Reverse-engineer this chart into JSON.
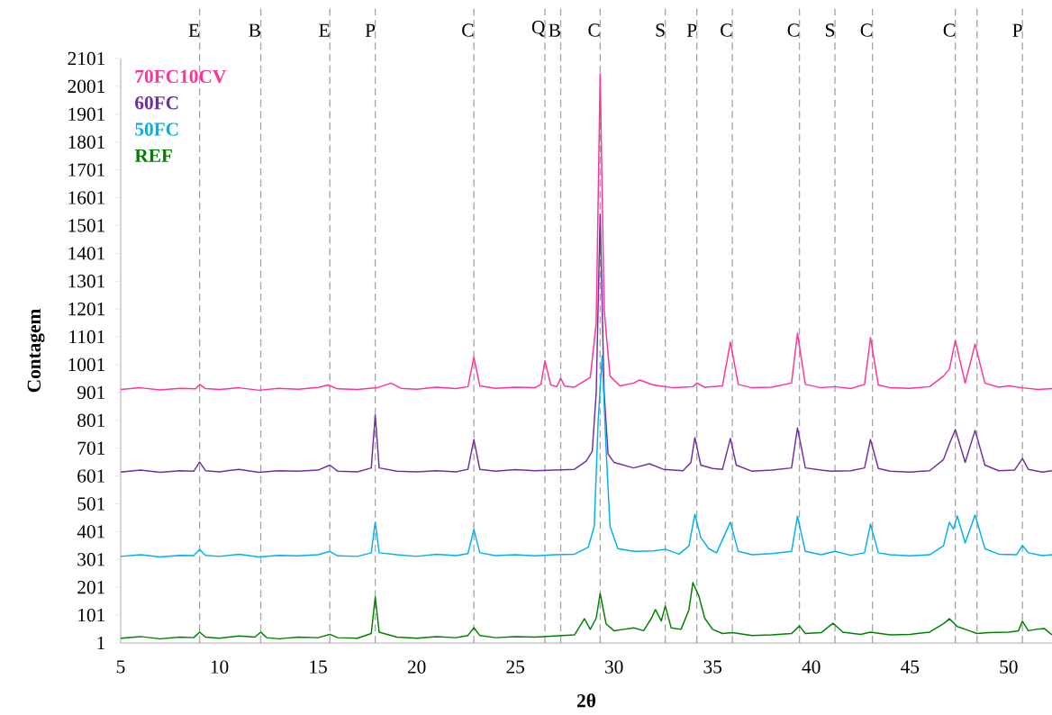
{
  "chart_data": {
    "type": "line",
    "xlabel": "2θ",
    "ylabel": "Contagem",
    "legend": "top left",
    "line_style": "solid",
    "xlim": [
      5,
      52.2
    ],
    "ylim": [
      1,
      2101
    ],
    "xticks": [
      5,
      10,
      15,
      20,
      25,
      30,
      35,
      40,
      45,
      50
    ],
    "yticks": [
      1,
      101,
      201,
      301,
      401,
      501,
      601,
      701,
      801,
      901,
      1001,
      1101,
      1201,
      1301,
      1401,
      1501,
      1601,
      1701,
      1801,
      1901,
      2001,
      2101
    ],
    "series": [
      {
        "name": "70FC10CV",
        "color": "#ff3399",
        "x": [
          5,
          6,
          7,
          8,
          8.8,
          9.0,
          9.3,
          10,
          11,
          12,
          13,
          14,
          15,
          15.5,
          16,
          17,
          18,
          18.7,
          19.2,
          20,
          21,
          22,
          22.6,
          22.9,
          23.2,
          24,
          25,
          26,
          26.3,
          26.5,
          26.8,
          27.1,
          27.3,
          27.5,
          28,
          28.8,
          29.1,
          29.3,
          29.5,
          29.8,
          30.3,
          31,
          31.3,
          32,
          33,
          34,
          34.2,
          34.6,
          35.5,
          35.9,
          36.3,
          37,
          38,
          39,
          39.3,
          39.7,
          40.5,
          41.2,
          42,
          42.7,
          43.0,
          43.4,
          44,
          45,
          46,
          46.7,
          47.0,
          47.3,
          47.8,
          48.3,
          48.8,
          49.5,
          50,
          50.7,
          51.5,
          52.2
        ],
        "values": [
          912,
          918,
          910,
          916,
          914,
          930,
          915,
          912,
          918,
          909,
          916,
          913,
          919,
          928,
          914,
          912,
          918,
          935,
          916,
          913,
          920,
          915,
          922,
          1028,
          925,
          916,
          920,
          918,
          930,
          1015,
          928,
          922,
          952,
          924,
          920,
          955,
          1150,
          2046,
          1200,
          960,
          925,
          935,
          946,
          928,
          918,
          922,
          935,
          920,
          925,
          1082,
          930,
          918,
          920,
          935,
          1114,
          930,
          918,
          922,
          915,
          930,
          1098,
          928,
          918,
          916,
          922,
          960,
          985,
          1088,
          935,
          1075,
          935,
          920,
          925,
          918,
          912,
          915
        ]
      },
      {
        "name": "60FC",
        "color": "#7030a0",
        "x": [
          5,
          6,
          7,
          8,
          8.7,
          9.0,
          9.3,
          10,
          11,
          12,
          13,
          14,
          15,
          15.6,
          16,
          17,
          17.7,
          17.9,
          18.1,
          19,
          20,
          21,
          22,
          22.6,
          22.9,
          23.2,
          24,
          25,
          26,
          27,
          28,
          28.6,
          28.9,
          29.1,
          29.3,
          29.5,
          29.7,
          30,
          31,
          31.8,
          32.5,
          33.5,
          33.9,
          34.1,
          34.4,
          35,
          35.5,
          35.9,
          36.2,
          37,
          38,
          39,
          39.3,
          39.7,
          40.5,
          41,
          42,
          42.7,
          43.0,
          43.4,
          44,
          45,
          46,
          46.7,
          47.0,
          47.3,
          47.8,
          48.3,
          48.8,
          49.5,
          50.3,
          50.7,
          51,
          51.7,
          52.2
        ],
        "values": [
          615,
          622,
          614,
          620,
          618,
          651,
          620,
          616,
          625,
          614,
          620,
          618,
          622,
          640,
          618,
          616,
          630,
          820,
          630,
          618,
          616,
          620,
          616,
          625,
          732,
          625,
          618,
          624,
          620,
          622,
          625,
          655,
          690,
          900,
          1541,
          900,
          680,
          650,
          630,
          645,
          625,
          620,
          650,
          739,
          640,
          628,
          625,
          736,
          640,
          618,
          622,
          630,
          774,
          630,
          622,
          618,
          620,
          630,
          732,
          628,
          618,
          615,
          620,
          660,
          716,
          768,
          650,
          765,
          640,
          620,
          622,
          664,
          625,
          615,
          620
        ]
      },
      {
        "name": "50FC",
        "color": "#00b0f0",
        "x": [
          5,
          6,
          7,
          8,
          8.7,
          9.0,
          9.3,
          10,
          11,
          12,
          13,
          14,
          15,
          15.6,
          16,
          17,
          17.7,
          17.9,
          18.1,
          19,
          20,
          21,
          22,
          22.6,
          22.9,
          23.2,
          24,
          25,
          26,
          27,
          28,
          28.7,
          29.0,
          29.2,
          29.4,
          29.6,
          29.8,
          30.2,
          31,
          32,
          32.6,
          33.3,
          33.8,
          34.1,
          34.4,
          34.8,
          35.2,
          35.9,
          36.3,
          37,
          38,
          39,
          39.3,
          39.7,
          40.5,
          41.2,
          42,
          42.7,
          43.0,
          43.4,
          44,
          45,
          46,
          46.7,
          47.0,
          47.2,
          47.4,
          47.8,
          48.3,
          48.8,
          49.5,
          50.4,
          50.7,
          51,
          51.7,
          52.2
        ],
        "values": [
          312,
          318,
          310,
          316,
          315,
          337,
          316,
          312,
          320,
          310,
          316,
          314,
          318,
          330,
          314,
          312,
          325,
          435,
          325,
          318,
          312,
          320,
          315,
          322,
          409,
          325,
          315,
          318,
          314,
          318,
          320,
          345,
          420,
          800,
          1033,
          700,
          420,
          340,
          330,
          332,
          338,
          320,
          350,
          464,
          380,
          340,
          325,
          435,
          330,
          318,
          322,
          330,
          457,
          330,
          318,
          330,
          316,
          325,
          428,
          325,
          318,
          314,
          318,
          350,
          435,
          410,
          457,
          360,
          461,
          340,
          320,
          318,
          351,
          325,
          315,
          318
        ]
      },
      {
        "name": "REF",
        "color": "#008000",
        "x": [
          5,
          6,
          7,
          8,
          8.7,
          9.0,
          9.3,
          10,
          11,
          11.8,
          12.1,
          12.4,
          13,
          14,
          15,
          15.6,
          16,
          17,
          17.7,
          17.9,
          18.1,
          19,
          20,
          21,
          22,
          22.6,
          22.9,
          23.2,
          24,
          25,
          26,
          27,
          28,
          28.5,
          28.8,
          29.1,
          29.3,
          29.6,
          30,
          30.5,
          31,
          31.5,
          31.9,
          32.1,
          32.4,
          32.6,
          32.9,
          33.4,
          33.8,
          34.0,
          34.3,
          34.6,
          35,
          35.5,
          36,
          37,
          38,
          39,
          39.4,
          39.7,
          40.5,
          41.1,
          41.6,
          42.5,
          43,
          44,
          45,
          46,
          46.7,
          47.0,
          47.4,
          48,
          48.4,
          49,
          50,
          50.5,
          50.7,
          51,
          51.4,
          51.8,
          52.2
        ],
        "values": [
          18,
          24,
          16,
          22,
          20,
          40,
          22,
          18,
          26,
          22,
          40,
          20,
          16,
          22,
          20,
          32,
          20,
          18,
          35,
          166,
          40,
          22,
          18,
          24,
          20,
          28,
          56,
          28,
          20,
          24,
          22,
          26,
          30,
          88,
          50,
          90,
          179,
          70,
          45,
          50,
          55,
          45,
          90,
          121,
          80,
          134,
          55,
          50,
          120,
          218,
          170,
          90,
          50,
          35,
          38,
          28,
          30,
          35,
          62,
          35,
          38,
          72,
          40,
          32,
          40,
          30,
          32,
          40,
          70,
          88,
          60,
          45,
          35,
          38,
          40,
          45,
          79,
          45,
          50,
          53,
          30
        ]
      }
    ],
    "ref_lines": [
      {
        "axis": "x",
        "value": 9.0,
        "label": "E",
        "color": "#a6a6a6",
        "line_style": "dashed"
      },
      {
        "axis": "x",
        "value": 12.1,
        "label": "B",
        "color": "#a6a6a6",
        "line_style": "dashed"
      },
      {
        "axis": "x",
        "value": 15.6,
        "label": "E",
        "color": "#a6a6a6",
        "line_style": "dashed"
      },
      {
        "axis": "x",
        "value": 17.9,
        "label": "P",
        "color": "#a6a6a6",
        "line_style": "dashed"
      },
      {
        "axis": "x",
        "value": 22.9,
        "label": "C",
        "color": "#a6a6a6",
        "line_style": "dashed"
      },
      {
        "axis": "x",
        "value": 26.5,
        "label": "Q",
        "color": "#a6a6a6",
        "line_style": "dashed"
      },
      {
        "axis": "x",
        "value": 27.3,
        "label": "B",
        "color": "#a6a6a6",
        "line_style": "dashed"
      },
      {
        "axis": "x",
        "value": 29.3,
        "label": "C",
        "color": "#a6a6a6",
        "line_style": "dashed"
      },
      {
        "axis": "x",
        "value": 32.6,
        "label": "S",
        "color": "#a6a6a6",
        "line_style": "dashed"
      },
      {
        "axis": "x",
        "value": 34.2,
        "label": "P",
        "color": "#a6a6a6",
        "line_style": "dashed"
      },
      {
        "axis": "x",
        "value": 36.0,
        "label": "C",
        "color": "#a6a6a6",
        "line_style": "dashed"
      },
      {
        "axis": "x",
        "value": 39.4,
        "label": "C",
        "color": "#a6a6a6",
        "line_style": "dashed"
      },
      {
        "axis": "x",
        "value": 41.2,
        "label": "S",
        "color": "#a6a6a6",
        "line_style": "dashed"
      },
      {
        "axis": "x",
        "value": 43.1,
        "label": "C",
        "color": "#a6a6a6",
        "line_style": "dashed"
      },
      {
        "axis": "x",
        "value": 47.3,
        "label": "C",
        "color": "#a6a6a6",
        "line_style": "dashed"
      },
      {
        "axis": "x",
        "value": 48.4,
        "color": "#a6a6a6",
        "line_style": "dashed"
      },
      {
        "axis": "x",
        "value": 50.7,
        "label": "P",
        "color": "#a6a6a6",
        "line_style": "dashed"
      }
    ]
  }
}
